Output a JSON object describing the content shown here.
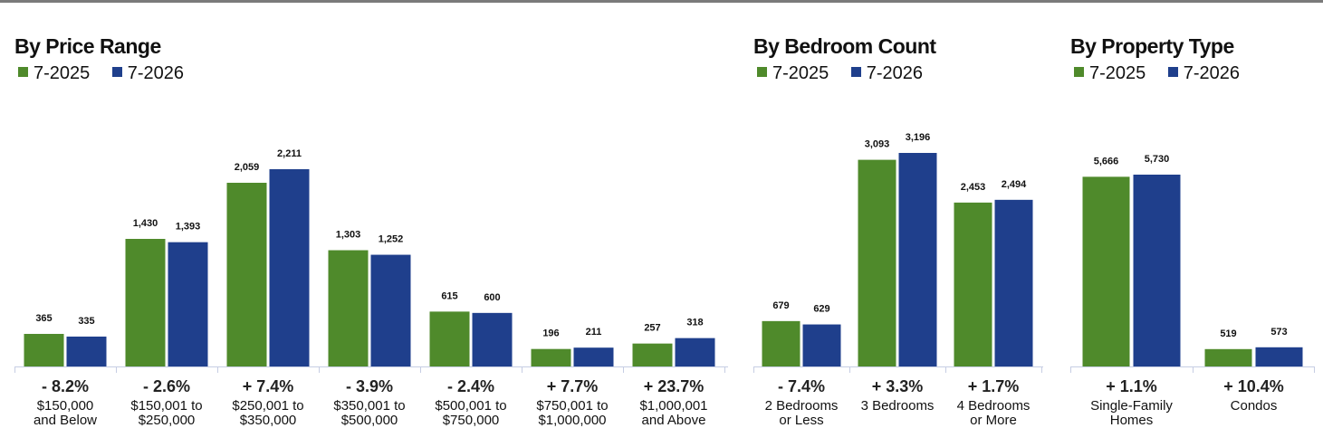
{
  "colors": {
    "series_2025": "#4f8a2b",
    "series_2026": "#1f3f8c",
    "axis": "#c6cde3"
  },
  "chart_data": [
    {
      "type": "bar",
      "title": "By Price Range",
      "categories": [
        [
          "$150,000",
          "and Below"
        ],
        [
          "$150,001 to",
          "$250,000"
        ],
        [
          "$250,001 to",
          "$350,000"
        ],
        [
          "$350,001 to",
          "$500,000"
        ],
        [
          "$500,001 to",
          "$750,000"
        ],
        [
          "$750,001 to",
          "$1,000,000"
        ],
        [
          "$1,000,001",
          "and Above"
        ]
      ],
      "series": [
        {
          "name": "7-2025",
          "values": [
            365,
            1430,
            2059,
            1303,
            615,
            196,
            257
          ],
          "labels": [
            "365",
            "1,430",
            "2,059",
            "1,303",
            "615",
            "196",
            "257"
          ]
        },
        {
          "name": "7-2026",
          "values": [
            335,
            1393,
            2211,
            1252,
            600,
            211,
            318
          ],
          "labels": [
            "335",
            "1,393",
            "2,211",
            "1,252",
            "600",
            "211",
            "318"
          ]
        }
      ],
      "changes": [
        "- 8.2%",
        "- 2.6%",
        "+ 7.4%",
        "- 3.9%",
        "- 2.4%",
        "+ 7.7%",
        "+ 23.7%"
      ]
    },
    {
      "type": "bar",
      "title": "By Bedroom Count",
      "categories": [
        [
          "2 Bedrooms",
          "or Less"
        ],
        [
          "3 Bedrooms"
        ],
        [
          "4 Bedrooms",
          "or More"
        ]
      ],
      "series": [
        {
          "name": "7-2025",
          "values": [
            679,
            3093,
            2453
          ],
          "labels": [
            "679",
            "3,093",
            "2,453"
          ]
        },
        {
          "name": "7-2026",
          "values": [
            629,
            3196,
            2494
          ],
          "labels": [
            "629",
            "3,196",
            "2,494"
          ]
        }
      ],
      "changes": [
        "- 7.4%",
        "+ 3.3%",
        "+ 1.7%"
      ]
    },
    {
      "type": "bar",
      "title": "By Property Type",
      "categories": [
        [
          "Single-Family",
          "Homes"
        ],
        [
          "Condos"
        ]
      ],
      "series": [
        {
          "name": "7-2025",
          "values": [
            5666,
            519
          ],
          "labels": [
            "5,666",
            "519"
          ]
        },
        {
          "name": "7-2026",
          "values": [
            5730,
            573
          ],
          "labels": [
            "5,730",
            "573"
          ]
        }
      ],
      "changes": [
        "+ 1.1%",
        "+ 10.4%"
      ]
    }
  ]
}
